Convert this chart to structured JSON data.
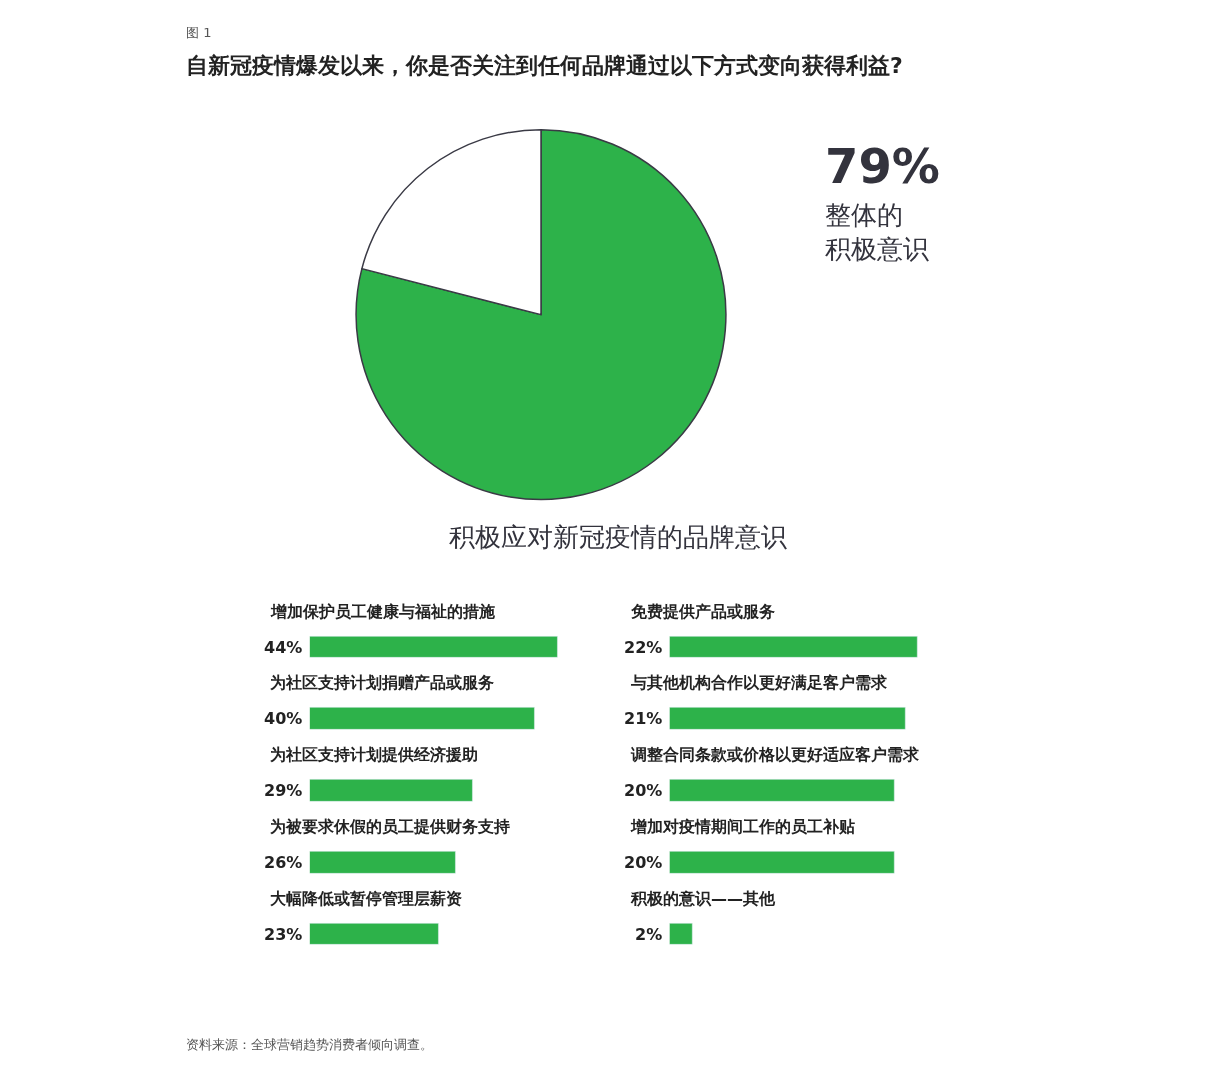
{
  "chart_data": [
    {
      "type": "pie",
      "title": "自新冠疫情爆发以来，你是否关注到任何品牌通过以下方式变向获得利益?",
      "categories": [
        "整体的积极意识",
        null
      ],
      "values": [
        79,
        21
      ],
      "colors": [
        "#2db24a",
        "#ffffff"
      ],
      "value_labels": [
        "79%",
        null
      ],
      "annotations": [
        "图 1",
        "资料来源：全球营销趋势消费者倾向调查。"
      ]
    },
    {
      "type": "bar",
      "orientation": "horizontal",
      "title": "积极应对新冠疫情的品牌意识",
      "categories": [
        "增加保护员工健康与福祉的措施",
        "为社区支持计划捐赠产品或服务",
        "为社区支持计划提供经济援助",
        "为被要求休假的员工提供财务支持",
        "大幅降低或暂停管理层薪资"
      ],
      "values": [
        44,
        40,
        29,
        26,
        23
      ],
      "value_labels": [
        "44%",
        "40%",
        "29%",
        "26%",
        "23%"
      ],
      "color": "#2db24a",
      "tick_labels": false
    },
    {
      "type": "bar",
      "orientation": "horizontal",
      "categories": [
        "免费提供产品或服务",
        "与其他机构合作以更好满足客户需求",
        "调整合同条款或价格以更好适应客户需求",
        "增加对疫情期间工作的员工补贴",
        "积极的意识——其他"
      ],
      "values": [
        22,
        21,
        20,
        20,
        2
      ],
      "value_labels": [
        "22%",
        "21%",
        "20%",
        "20%",
        "2%"
      ],
      "color": "#2db24a",
      "tick_labels": false
    }
  ]
}
